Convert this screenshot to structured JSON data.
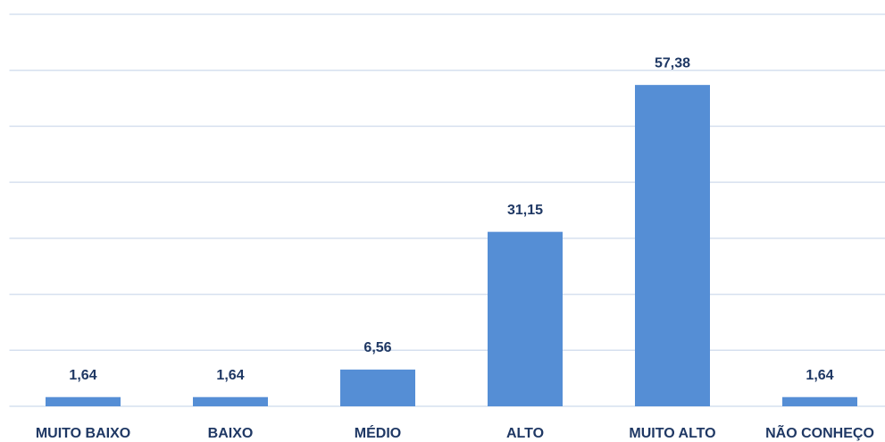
{
  "chart_data": {
    "type": "bar",
    "categories": [
      "MUITO BAIXO",
      "BAIXO",
      "MÉDIO",
      "ALTO",
      "MUITO ALTO",
      "NÃO CONHEÇO"
    ],
    "values": [
      1.64,
      1.64,
      6.56,
      31.15,
      57.38,
      1.64
    ],
    "value_labels": [
      "1,64",
      "1,64",
      "6,56",
      "31,15",
      "57,38",
      "1,64"
    ],
    "color": "#558ed5",
    "ylim": [
      0,
      70
    ],
    "yticks": [
      0,
      10,
      20,
      30,
      40,
      50,
      60,
      70
    ],
    "grid": true
  }
}
